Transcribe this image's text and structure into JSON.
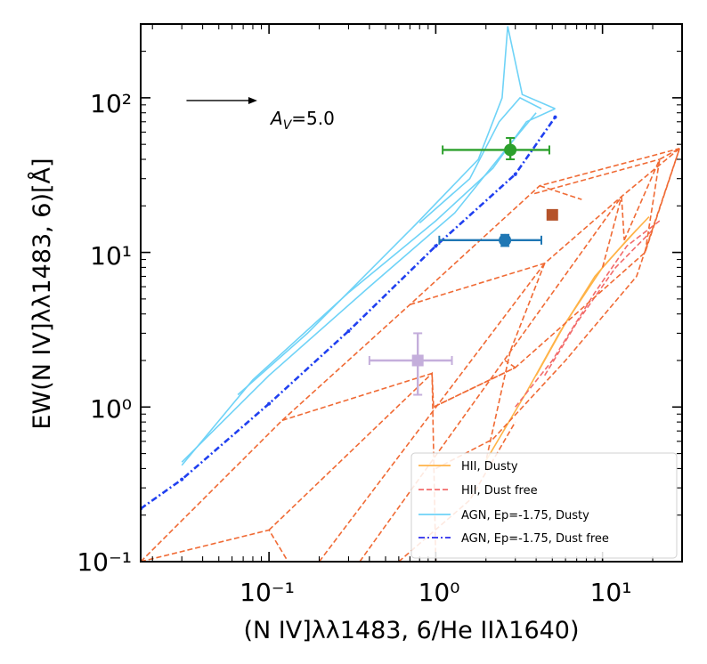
{
  "chart_data": {
    "type": "line",
    "xscale": "log",
    "yscale": "log",
    "xlim": [
      0.017,
      30
    ],
    "ylim": [
      0.1,
      300
    ],
    "xlabel": "(N IV]λλ1483, 6/He IIλ1640)",
    "ylabel": "EW(N IV]λλ1483, 6)[Å]",
    "x_tick_labels": [
      "10⁻¹",
      "10⁰",
      "10¹"
    ],
    "y_tick_labels": [
      "10⁻¹",
      "10⁰",
      "10¹",
      "10²"
    ],
    "x_tick_values": [
      0.1,
      1,
      10
    ],
    "y_tick_values": [
      0.1,
      1,
      10,
      100
    ],
    "annotation": {
      "label": "A_V=5.0",
      "label_main": "A",
      "label_sub": "V",
      "label_rest": "=5.0",
      "arrow_from": [
        0.032,
        96
      ],
      "arrow_to": [
        0.085,
        96
      ]
    },
    "legend": {
      "position": "lower right",
      "entries": [
        {
          "label": "HII, Dusty",
          "color": "#ffb347",
          "style": "solid"
        },
        {
          "label": "HII, Dust free",
          "color": "#f26b6b",
          "style": "dashed"
        },
        {
          "label": "AGN, Ep=-1.75, Dusty",
          "color": "#6fd3f7",
          "style": "solid"
        },
        {
          "label": "AGN, Ep=-1.75, Dust free",
          "color": "#4545ee",
          "style": "dashdot"
        }
      ]
    },
    "series": [
      {
        "name": "AGN, Ep=-1.75, Dust free",
        "color": "#2040f0",
        "style": "dashdot",
        "points": [
          [
            0.017,
            0.22
          ],
          [
            0.03,
            0.34
          ],
          [
            0.1,
            1.05
          ],
          [
            0.3,
            3.1
          ],
          [
            1.0,
            11.0
          ],
          [
            3.0,
            32.0
          ],
          [
            5.2,
            75.0
          ]
        ]
      },
      {
        "name": "AGN, Ep=-1.75, Dusty",
        "color": "#6fd3f7",
        "style": "solid",
        "lines": [
          [
            [
              0.03,
              0.42
            ],
            [
              0.08,
              1.5
            ],
            [
              0.3,
              5.5
            ],
            [
              1.0,
              16.0
            ],
            [
              2.2,
              35.0
            ],
            [
              3.5,
              70.0
            ],
            [
              5.2,
              85.0
            ]
          ],
          [
            [
              0.03,
              0.44
            ],
            [
              0.1,
              1.6
            ],
            [
              0.4,
              6.0
            ],
            [
              1.3,
              18.0
            ],
            [
              2.7,
              48.0
            ],
            [
              4.0,
              80.0
            ]
          ],
          [
            [
              0.065,
              1.2
            ],
            [
              0.17,
              3.0
            ],
            [
              0.75,
              15.0
            ],
            [
              1.8,
              40.0
            ],
            [
              2.5,
              100.0
            ],
            [
              2.7,
              290.0
            ],
            [
              3.3,
              105.0
            ],
            [
              5.2,
              85.0
            ]
          ],
          [
            [
              0.8,
              15.5
            ],
            [
              1.6,
              30.0
            ],
            [
              2.4,
              70.0
            ],
            [
              3.2,
              100.0
            ],
            [
              4.3,
              85.0
            ]
          ]
        ]
      },
      {
        "name": "HII, Dusty",
        "color": "#ffb347",
        "style": "solid",
        "lines": [
          [
            [
              2.0,
              0.45
            ],
            [
              3.5,
              1.25
            ],
            [
              5.5,
              3.0
            ],
            [
              9.0,
              7.0
            ],
            [
              14.0,
              12.0
            ],
            [
              19.0,
              17.0
            ]
          ],
          [
            [
              4.0,
              1.6
            ],
            [
              6.0,
              3.5
            ],
            [
              10.0,
              8.0
            ],
            [
              16.0,
              14.0
            ]
          ]
        ]
      },
      {
        "name": "HII, Dust free",
        "color": "#f26b6b",
        "style": "dashed",
        "lines": [
          [
            [
              3.0,
              1.0
            ],
            [
              5.0,
              2.0
            ],
            [
              9.0,
              5.5
            ],
            [
              14.0,
              11.0
            ],
            [
              22.0,
              16.0
            ]
          ],
          [
            [
              4.5,
              1.6
            ],
            [
              7.0,
              3.5
            ],
            [
              12.0,
              8.0
            ],
            [
              20.0,
              14.0
            ]
          ]
        ]
      },
      {
        "name": "HII grid (dashed orange)",
        "color": "#f06a34",
        "style": "dashed",
        "lines": [
          [
            [
              0.017,
              0.1
            ],
            [
              0.1,
              0.16
            ],
            [
              0.13,
              0.1
            ]
          ],
          [
            [
              0.1,
              0.16
            ],
            [
              0.95,
              1.65
            ],
            [
              1.0,
              0.1
            ]
          ],
          [
            [
              0.12,
              0.82
            ],
            [
              0.95,
              1.65
            ],
            [
              0.97,
              1.0
            ],
            [
              3.0,
              1.8
            ],
            [
              18.0,
              10.0
            ],
            [
              29.0,
              47.0
            ]
          ],
          [
            [
              0.12,
              0.82
            ],
            [
              0.7,
              4.6
            ],
            [
              4.2,
              27.0
            ],
            [
              29.0,
              47.0
            ]
          ],
          [
            [
              0.7,
              4.6
            ],
            [
              4.5,
              8.5
            ],
            [
              13.0,
              23.0
            ],
            [
              29.0,
              47.0
            ]
          ],
          [
            [
              0.017,
              0.1
            ],
            [
              0.12,
              0.82
            ]
          ],
          [
            [
              0.2,
              0.1
            ],
            [
              4.5,
              8.5
            ]
          ],
          [
            [
              0.35,
              0.1
            ],
            [
              13.0,
              23.0
            ]
          ],
          [
            [
              0.97,
              1.0
            ],
            [
              3.0,
              1.8
            ]
          ],
          [
            [
              4.2,
              27.0
            ],
            [
              7.5,
              22.0
            ]
          ],
          [
            [
              3.9,
              24.0
            ],
            [
              22.0,
              40.0
            ]
          ],
          [
            [
              3.0,
              1.8
            ],
            [
              2.6,
              2.0
            ]
          ],
          [
            [
              4.5,
              8.5
            ],
            [
              2.8,
              2.3
            ]
          ],
          [
            [
              2.8,
              2.3
            ],
            [
              2.0,
              0.45
            ]
          ],
          [
            [
              10.0,
              8.0
            ],
            [
              13.0,
              23.0
            ]
          ],
          [
            [
              13.0,
              23.0
            ],
            [
              13.5,
              12.0
            ]
          ],
          [
            [
              13.5,
              12.0
            ],
            [
              22.0,
              40.0
            ]
          ],
          [
            [
              18.0,
              10.0
            ],
            [
              22.0,
              40.0
            ]
          ],
          [
            [
              22.0,
              40.0
            ],
            [
              29.0,
              47.0
            ]
          ],
          [
            [
              1.0,
              0.4
            ],
            [
              2.2,
              0.62
            ],
            [
              6.0,
              2.0
            ],
            [
              16.0,
              7.0
            ],
            [
              29.0,
              47.0
            ]
          ],
          [
            [
              0.6,
              0.1
            ],
            [
              1.6,
              0.25
            ],
            [
              3.0,
              0.8
            ]
          ]
        ]
      }
    ],
    "points": [
      {
        "name": "green",
        "color": "#2ca02c",
        "marker": "circle",
        "x": 2.8,
        "y": 46,
        "xerr": [
          1.1,
          4.8
        ],
        "yerr": [
          40,
          55
        ]
      },
      {
        "name": "blue",
        "color": "#1f77b4",
        "marker": "circle",
        "x": 2.6,
        "y": 12,
        "xerr": [
          1.05,
          4.3
        ],
        "yerr": [
          11,
          13
        ]
      },
      {
        "name": "brown",
        "color": "#b5532a",
        "marker": "square",
        "x": 5.0,
        "y": 17.5,
        "xerr": null,
        "yerr": null
      },
      {
        "name": "lavender",
        "color": "#c4aedb",
        "marker": "square",
        "x": 0.78,
        "y": 2.0,
        "xerr": [
          0.4,
          1.25
        ],
        "yerr": [
          1.2,
          3.0
        ]
      }
    ]
  }
}
